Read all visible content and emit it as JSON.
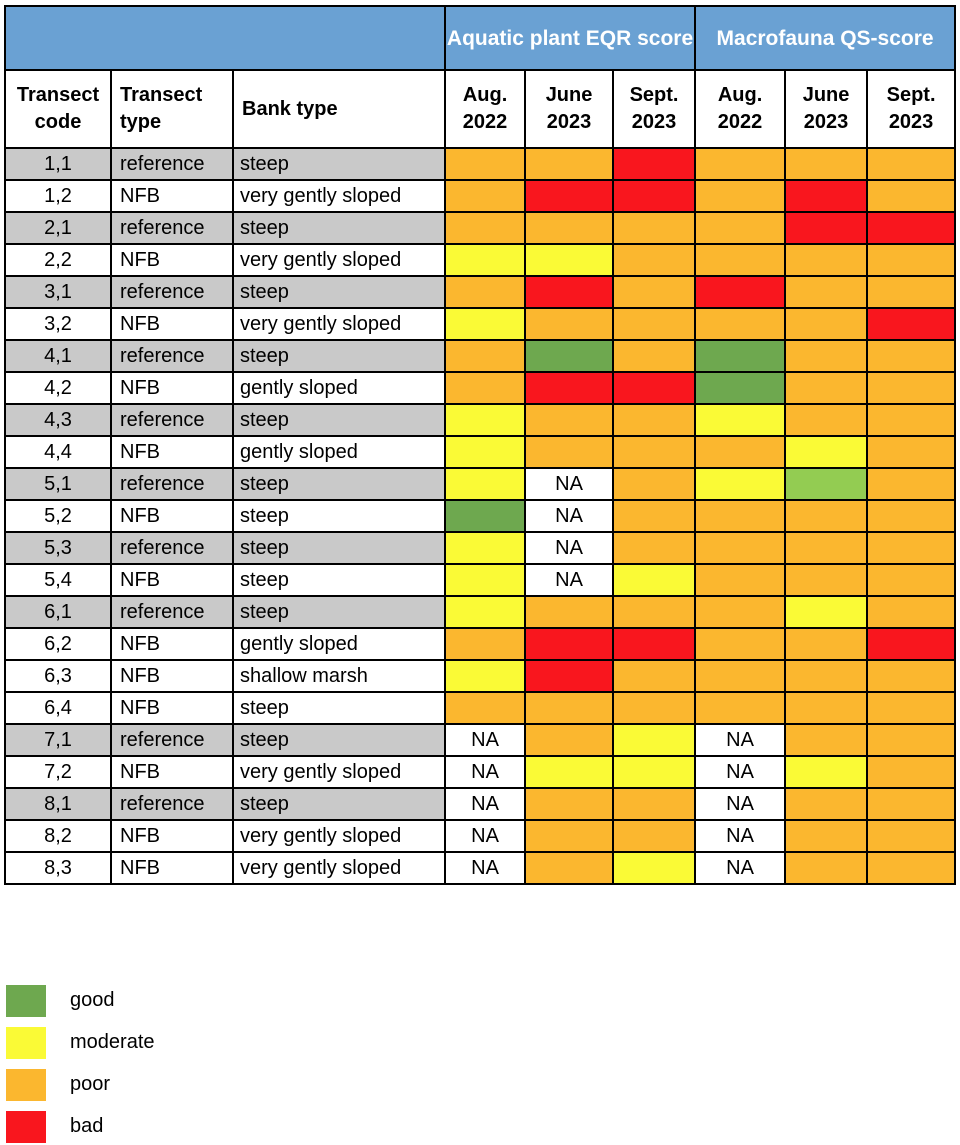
{
  "colors": {
    "good": "#6ea84f",
    "good_light": "#93cc52",
    "moderate": "#fafa36",
    "poor": "#fbb72f",
    "bad": "#f9161e",
    "na": "#ffffff",
    "header_band": "#6aa1d3",
    "reference_row": "#c9c9c9"
  },
  "header": {
    "group_aquatic": "Aquatic plant EQR score",
    "group_macrofauna": "Macrofauna QS-score",
    "col_code": "Transect code",
    "col_type": "Transect type",
    "col_bank": "Bank type",
    "periods": [
      "Aug. 2022",
      "June 2023",
      "Sept. 2023",
      "Aug. 2022",
      "June 2023",
      "Sept. 2023"
    ]
  },
  "rows": [
    {
      "code": "1,1",
      "type": "reference",
      "bank": "steep",
      "eqr": [
        "poor",
        "poor",
        "bad"
      ],
      "qs": [
        "poor",
        "poor",
        "poor"
      ]
    },
    {
      "code": "1,2",
      "type": "NFB",
      "bank": "very gently sloped",
      "eqr": [
        "poor",
        "bad",
        "bad"
      ],
      "qs": [
        "poor",
        "bad",
        "poor"
      ]
    },
    {
      "code": "2,1",
      "type": "reference",
      "bank": "steep",
      "eqr": [
        "poor",
        "poor",
        "poor"
      ],
      "qs": [
        "poor",
        "bad",
        "bad"
      ]
    },
    {
      "code": "2,2",
      "type": "NFB",
      "bank": "very gently sloped",
      "eqr": [
        "moderate",
        "moderate",
        "poor"
      ],
      "qs": [
        "poor",
        "poor",
        "poor"
      ]
    },
    {
      "code": "3,1",
      "type": "reference",
      "bank": "steep",
      "eqr": [
        "poor",
        "bad",
        "poor"
      ],
      "qs": [
        "bad",
        "poor",
        "poor"
      ]
    },
    {
      "code": "3,2",
      "type": "NFB",
      "bank": "very gently sloped",
      "eqr": [
        "moderate",
        "poor",
        "poor"
      ],
      "qs": [
        "poor",
        "poor",
        "bad"
      ]
    },
    {
      "code": "4,1",
      "type": "reference",
      "bank": "steep",
      "eqr": [
        "poor",
        "good",
        "poor"
      ],
      "qs": [
        "good",
        "poor",
        "poor"
      ]
    },
    {
      "code": "4,2",
      "type": "NFB",
      "bank": "gently sloped",
      "eqr": [
        "poor",
        "bad",
        "bad"
      ],
      "qs": [
        "good",
        "poor",
        "poor"
      ]
    },
    {
      "code": "4,3",
      "type": "reference",
      "bank": "steep",
      "eqr": [
        "moderate",
        "poor",
        "poor"
      ],
      "qs": [
        "moderate",
        "poor",
        "poor"
      ]
    },
    {
      "code": "4,4",
      "type": "NFB",
      "bank": "gently sloped",
      "eqr": [
        "moderate",
        "poor",
        "poor"
      ],
      "qs": [
        "poor",
        "moderate",
        "poor"
      ]
    },
    {
      "code": "5,1",
      "type": "reference",
      "bank": "steep",
      "eqr": [
        "moderate",
        "NA",
        "poor"
      ],
      "qs": [
        "moderate",
        "good_light",
        "poor"
      ]
    },
    {
      "code": "5,2",
      "type": "NFB",
      "bank": "steep",
      "eqr": [
        "good",
        "NA",
        "poor"
      ],
      "qs": [
        "poor",
        "poor",
        "poor"
      ]
    },
    {
      "code": "5,3",
      "type": "reference",
      "bank": "steep",
      "eqr": [
        "moderate",
        "NA",
        "poor"
      ],
      "qs": [
        "poor",
        "poor",
        "poor"
      ]
    },
    {
      "code": "5,4",
      "type": "NFB",
      "bank": "steep",
      "eqr": [
        "moderate",
        "NA",
        "moderate"
      ],
      "qs": [
        "poor",
        "poor",
        "poor"
      ]
    },
    {
      "code": "6,1",
      "type": "reference",
      "bank": "steep",
      "eqr": [
        "moderate",
        "poor",
        "poor"
      ],
      "qs": [
        "poor",
        "moderate",
        "poor"
      ]
    },
    {
      "code": "6,2",
      "type": "NFB",
      "bank": "gently sloped",
      "eqr": [
        "poor",
        "bad",
        "bad"
      ],
      "qs": [
        "poor",
        "poor",
        "bad"
      ]
    },
    {
      "code": "6,3",
      "type": "NFB",
      "bank": "shallow marsh",
      "eqr": [
        "moderate",
        "bad",
        "poor"
      ],
      "qs": [
        "poor",
        "poor",
        "poor"
      ]
    },
    {
      "code": "6,4",
      "type": "NFB",
      "bank": "steep",
      "eqr": [
        "poor",
        "poor",
        "poor"
      ],
      "qs": [
        "poor",
        "poor",
        "poor"
      ]
    },
    {
      "code": "7,1",
      "type": "reference",
      "bank": "steep",
      "eqr": [
        "NA",
        "poor",
        "moderate"
      ],
      "qs": [
        "NA",
        "poor",
        "poor"
      ]
    },
    {
      "code": "7,2",
      "type": "NFB",
      "bank": "very gently sloped",
      "eqr": [
        "NA",
        "moderate",
        "moderate"
      ],
      "qs": [
        "NA",
        "moderate",
        "poor"
      ]
    },
    {
      "code": "8,1",
      "type": "reference",
      "bank": "steep",
      "eqr": [
        "NA",
        "poor",
        "poor"
      ],
      "qs": [
        "NA",
        "poor",
        "poor"
      ]
    },
    {
      "code": "8,2",
      "type": "NFB",
      "bank": "very gently sloped",
      "eqr": [
        "NA",
        "poor",
        "poor"
      ],
      "qs": [
        "NA",
        "poor",
        "poor"
      ]
    },
    {
      "code": "8,3",
      "type": "NFB",
      "bank": "very gently sloped",
      "eqr": [
        "NA",
        "poor",
        "moderate"
      ],
      "qs": [
        "NA",
        "poor",
        "poor"
      ]
    }
  ],
  "legend": [
    {
      "key": "good",
      "label": "good"
    },
    {
      "key": "moderate",
      "label": "moderate"
    },
    {
      "key": "poor",
      "label": "poor"
    },
    {
      "key": "bad",
      "label": "bad"
    }
  ]
}
